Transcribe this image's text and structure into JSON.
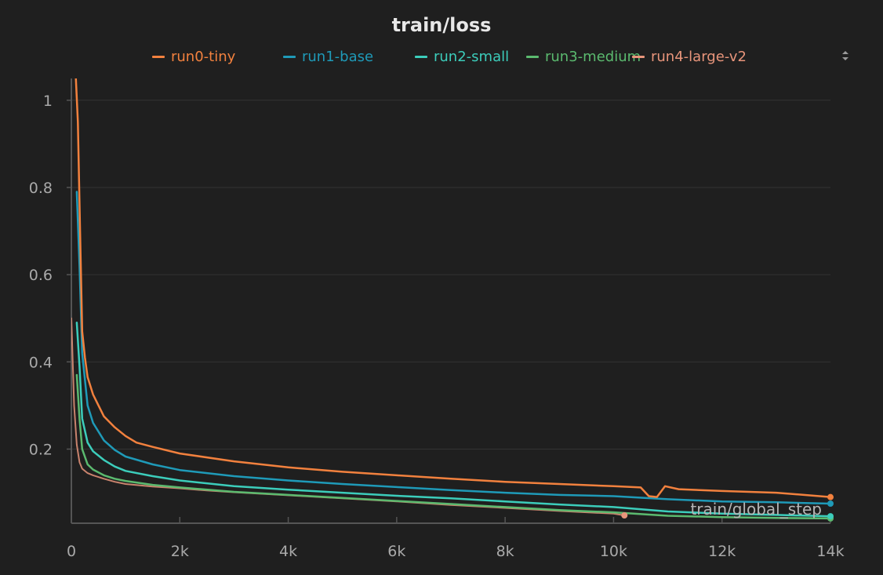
{
  "chart_data": {
    "type": "line",
    "title": "train/loss",
    "xlabel": "train/global_step",
    "ylabel": "",
    "xlim": [
      0,
      14000
    ],
    "ylim": [
      0.03,
      1.05
    ],
    "x_ticks": [
      {
        "value": 0,
        "label": "0"
      },
      {
        "value": 2000,
        "label": "2k"
      },
      {
        "value": 4000,
        "label": "4k"
      },
      {
        "value": 6000,
        "label": "6k"
      },
      {
        "value": 8000,
        "label": "8k"
      },
      {
        "value": 10000,
        "label": "10k"
      },
      {
        "value": 12000,
        "label": "12k"
      },
      {
        "value": 14000,
        "label": "14k"
      }
    ],
    "y_ticks": [
      {
        "value": 0.2,
        "label": "0.2"
      },
      {
        "value": 0.4,
        "label": "0.4"
      },
      {
        "value": 0.6,
        "label": "0.6"
      },
      {
        "value": 0.8,
        "label": "0.8"
      },
      {
        "value": 1,
        "label": "1"
      }
    ],
    "grid": true,
    "legend_position": "top",
    "series": [
      {
        "name": "run4-large-v2",
        "color": "#e8957b",
        "end_marker": true,
        "x": [
          0,
          50,
          100,
          150,
          200,
          300,
          400,
          600,
          800,
          1000,
          1500,
          2000,
          2500,
          3000,
          4000,
          5000,
          6000,
          7000,
          8000,
          9000,
          10000,
          10200
        ],
        "y": [
          0.5,
          0.3,
          0.21,
          0.17,
          0.155,
          0.145,
          0.14,
          0.132,
          0.125,
          0.12,
          0.114,
          0.11,
          0.105,
          0.101,
          0.094,
          0.087,
          0.08,
          0.072,
          0.065,
          0.058,
          0.052,
          0.048
        ]
      },
      {
        "name": "run3-medium",
        "color": "#5bba6f",
        "end_marker": true,
        "x": [
          100,
          150,
          200,
          300,
          400,
          600,
          800,
          1000,
          1500,
          2000,
          3000,
          4000,
          5000,
          6000,
          7000,
          8000,
          9000,
          10000,
          11000,
          12000,
          13000,
          14000
        ],
        "y": [
          0.37,
          0.27,
          0.2,
          0.165,
          0.153,
          0.14,
          0.132,
          0.127,
          0.118,
          0.112,
          0.102,
          0.095,
          0.088,
          0.081,
          0.074,
          0.067,
          0.06,
          0.055,
          0.047,
          0.044,
          0.042,
          0.041
        ]
      },
      {
        "name": "run2-small",
        "color": "#3ccdbb",
        "end_marker": true,
        "x": [
          100,
          150,
          200,
          300,
          400,
          600,
          800,
          1000,
          1500,
          2000,
          3000,
          4000,
          5000,
          6000,
          7000,
          8000,
          9000,
          10000,
          11000,
          12000,
          13000,
          14000
        ],
        "y": [
          0.49,
          0.39,
          0.27,
          0.215,
          0.195,
          0.175,
          0.16,
          0.15,
          0.138,
          0.128,
          0.115,
          0.107,
          0.1,
          0.093,
          0.087,
          0.08,
          0.073,
          0.067,
          0.057,
          0.052,
          0.049,
          0.046
        ]
      },
      {
        "name": "run1-base",
        "color": "#1f9ab8",
        "end_marker": true,
        "x": [
          100,
          150,
          200,
          300,
          400,
          600,
          800,
          1000,
          1500,
          2000,
          3000,
          4000,
          5000,
          6000,
          7000,
          8000,
          9000,
          10000,
          11000,
          12000,
          13000,
          14000
        ],
        "y": [
          0.79,
          0.62,
          0.42,
          0.3,
          0.26,
          0.22,
          0.198,
          0.183,
          0.165,
          0.152,
          0.138,
          0.128,
          0.12,
          0.113,
          0.106,
          0.1,
          0.095,
          0.092,
          0.085,
          0.08,
          0.078,
          0.075
        ]
      },
      {
        "name": "run0-tiny",
        "color": "#f2813e",
        "end_marker": true,
        "x": [
          80,
          120,
          160,
          200,
          250,
          300,
          400,
          500,
          600,
          800,
          1000,
          1200,
          1500,
          2000,
          3000,
          4000,
          5000,
          6000,
          7000,
          8000,
          9000,
          10000,
          10500,
          10650,
          10800,
          10950,
          11200,
          12000,
          13000,
          14000
        ],
        "y": [
          1.06,
          0.95,
          0.7,
          0.47,
          0.41,
          0.365,
          0.325,
          0.3,
          0.275,
          0.25,
          0.23,
          0.215,
          0.205,
          0.19,
          0.172,
          0.158,
          0.148,
          0.14,
          0.132,
          0.125,
          0.12,
          0.115,
          0.112,
          0.092,
          0.09,
          0.115,
          0.108,
          0.104,
          0.1,
          0.09
        ]
      }
    ]
  },
  "legend_toggle_icon": "sort-arrows-icon"
}
